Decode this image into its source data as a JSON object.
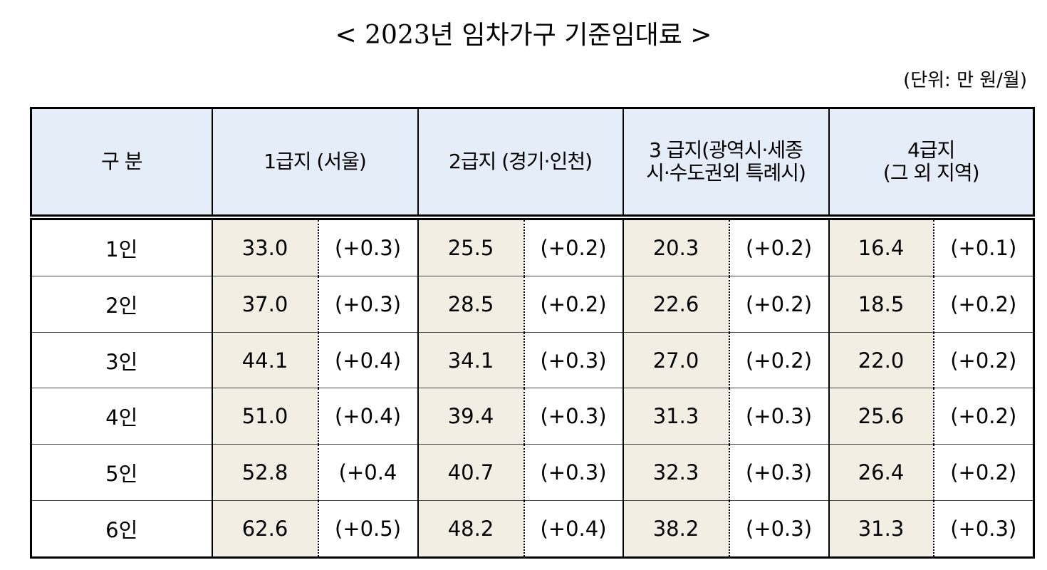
{
  "title": "< 2023년 임차가구 기준임대료 >",
  "unit": "(단위: 만 원/월)",
  "table": {
    "header": [
      [
        "구 분"
      ],
      [
        "1급지 (서울)"
      ],
      [
        "2급지 (경기·인천)"
      ],
      [
        "3 급지(광역시·세종",
        "시·수도권외 특례시)"
      ],
      [
        "4급지",
        "(그 외 지역)"
      ]
    ],
    "rows": [
      [
        "1인",
        "33.0",
        "(+0.3)",
        "25.5",
        "(+0.2)",
        "20.3",
        "(+0.2)",
        "16.4",
        "(+0.1)"
      ],
      [
        "2인",
        "37.0",
        "(+0.3)",
        "28.5",
        "(+0.2)",
        "22.6",
        "(+0.2)",
        "18.5",
        "(+0.2)"
      ],
      [
        "3인",
        "44.1",
        "(+0.4)",
        "34.1",
        "(+0.3)",
        "27.0",
        "(+0.2)",
        "22.0",
        "(+0.2)"
      ],
      [
        "4인",
        "51.0",
        "(+0.4)",
        "39.4",
        "(+0.3)",
        "31.3",
        "(+0.3)",
        "25.6",
        "(+0.2)"
      ],
      [
        "5인",
        "52.8",
        "(+0.4",
        "40.7",
        "(+0.3)",
        "32.3",
        "(+0.3)",
        "26.4",
        "(+0.2)"
      ],
      [
        "6인",
        "62.6",
        "(+0.5)",
        "48.2",
        "(+0.4)",
        "38.2",
        "(+0.3)",
        "31.3",
        "(+0.3)"
      ]
    ]
  }
}
